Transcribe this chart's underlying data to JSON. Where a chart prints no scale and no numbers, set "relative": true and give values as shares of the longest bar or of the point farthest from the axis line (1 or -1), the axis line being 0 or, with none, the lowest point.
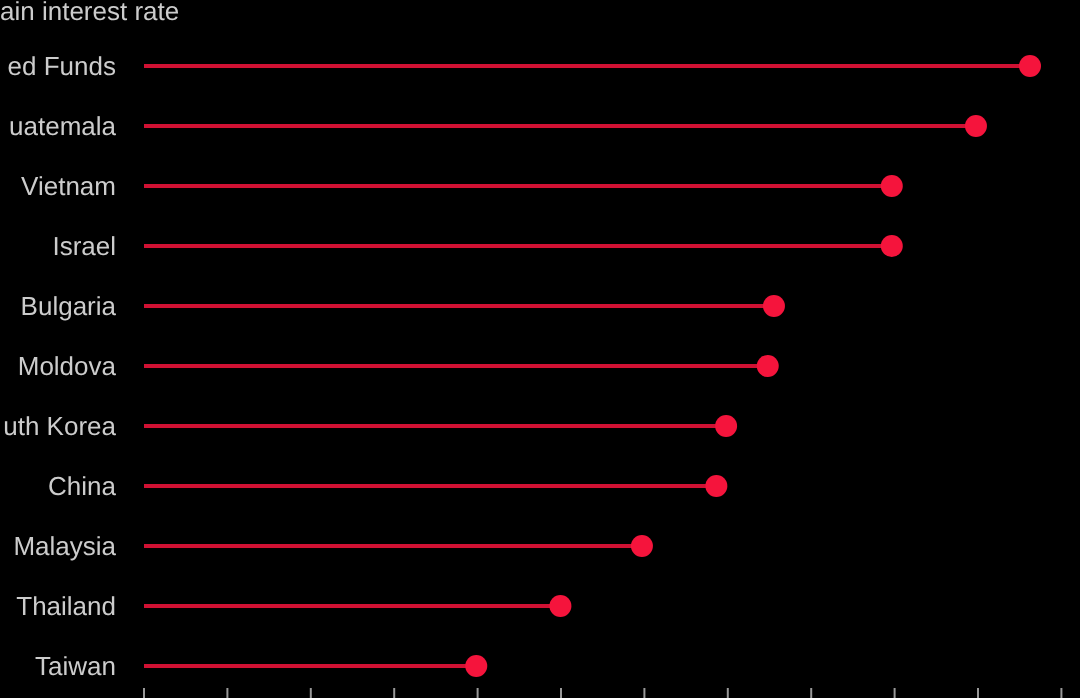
{
  "chart_data": {
    "type": "lollipop",
    "title": "ain interest rate",
    "relative": true,
    "orientation": "horizontal",
    "categories": [
      "ed Funds",
      "uatemala",
      "Vietnam",
      "Israel",
      "Bulgaria",
      "Moldova",
      "uth Korea",
      "China",
      "Malaysia",
      "Thailand",
      "Taiwan"
    ],
    "series": [
      {
        "color": "#f5143c",
        "values": [
          1,
          0.939,
          0.844,
          0.844,
          0.711,
          0.704,
          0.657,
          0.646,
          0.562,
          0.47,
          0.375
        ]
      }
    ],
    "marker": "circle"
  }
}
